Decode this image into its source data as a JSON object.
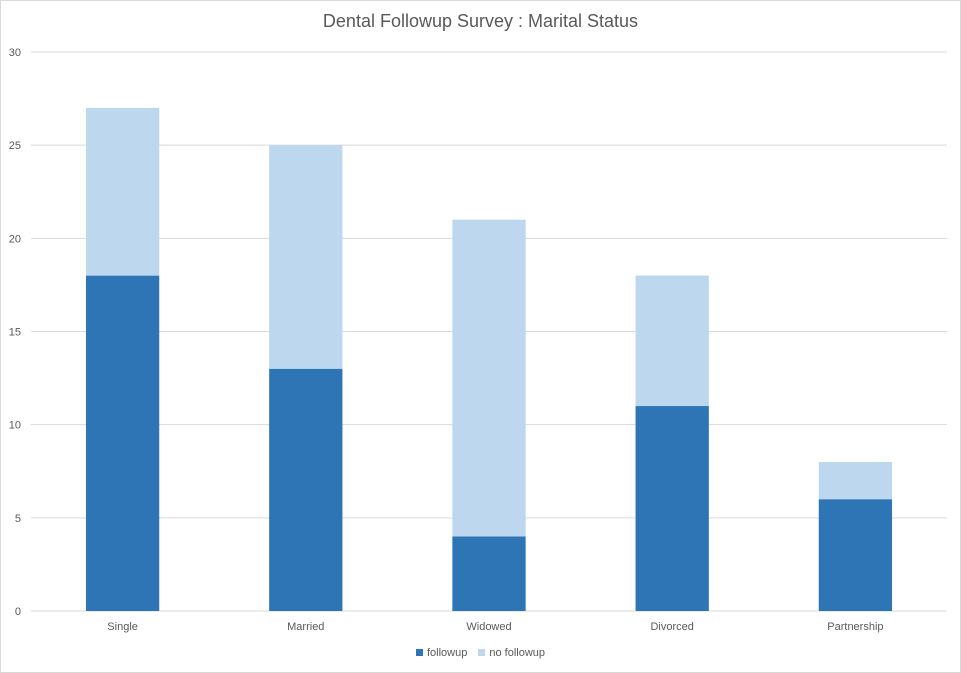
{
  "chart_data": {
    "type": "bar",
    "stacked": true,
    "title": "Dental Followup Survey : Marital Status",
    "xlabel": "",
    "ylabel": "",
    "categories": [
      "Single",
      "Married",
      "Widowed",
      "Divorced",
      "Partnership"
    ],
    "series": [
      {
        "name": "followup",
        "values": [
          18,
          13,
          4,
          11,
          6
        ],
        "color": "#2e75b6"
      },
      {
        "name": "no followup",
        "values": [
          9,
          12,
          17,
          7,
          2
        ],
        "color": "#bdd7ee"
      }
    ],
    "ylim": [
      0,
      30
    ],
    "yticks": [
      "0",
      "5",
      "10",
      "15",
      "20",
      "25",
      "30"
    ],
    "grid": true,
    "legend_position": "bottom"
  }
}
